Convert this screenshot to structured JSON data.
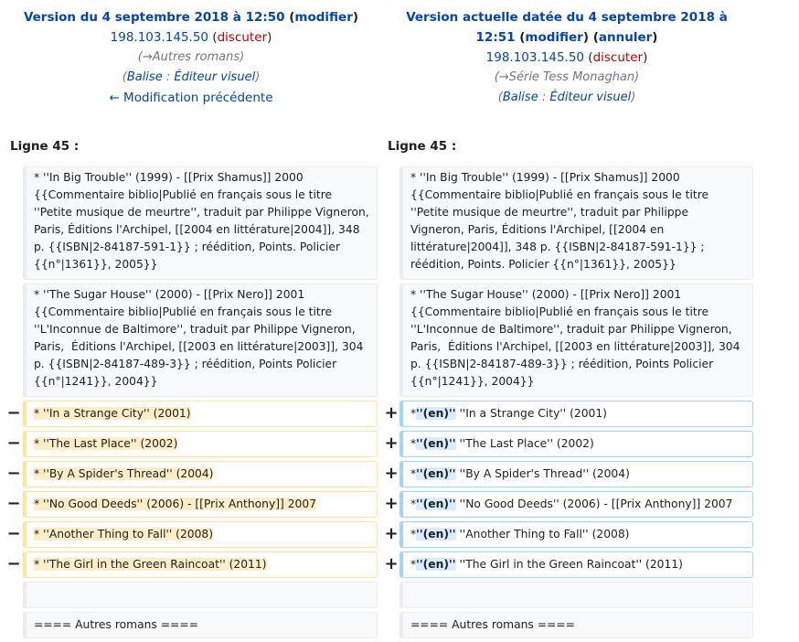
{
  "left_header": {
    "title_prefix": "Version du 4 septembre 2018 à 12:50",
    "edit_open": " (",
    "edit_link": "modifier",
    "edit_close": ")",
    "user": "198.103.145.50",
    "talk_open": " (",
    "talk_link": "discuter",
    "talk_close": ")",
    "summary_open": "(",
    "summary_link": "→Autres romans",
    "summary_close": ")",
    "tag_open": "(",
    "tag_label": "Balise",
    "tag_sep": " : ",
    "tag_link": "Éditeur visuel",
    "tag_close": ")",
    "prev_link": "← Modification précédente"
  },
  "right_header": {
    "title_line1": "Version actuelle datée du 4 septembre 2018 à",
    "title_line2": "12:51",
    "edit_open": " (",
    "edit_link": "modifier",
    "mid": ") (",
    "undo_link": "annuler",
    "edit_close": ")",
    "user": "198.103.145.50",
    "talk_open": " (",
    "talk_link": "discuter",
    "talk_close": ")",
    "summary_open": "(",
    "summary_link": "→Série Tess Monaghan",
    "summary_close": ")",
    "tag_open": "(",
    "tag_label": "Balise",
    "tag_sep": " : ",
    "tag_link": "Éditeur visuel",
    "tag_close": ")"
  },
  "line_left": "Ligne 45 :",
  "line_right": "Ligne 45 :",
  "context": {
    "c1": "* ''In Big Trouble'' (1999) - [[Prix Shamus]] 2000 {{Commentaire biblio|Publié en français sous le titre ''Petite musique de meurtre'', traduit par Philippe Vigneron, Paris, Éditions l'Archipel, [[2004 en littérature|2004]], 348 p. {{ISBN|2-84187-591-1}} ; réédition, Points. Policier {{n°|1361}}, 2005}}",
    "c2": "* ''The Sugar House'' (2000) - [[Prix Nero]] 2001 {{Commentaire biblio|Publié en français sous le titre ''L'Inconnue de Baltimore'', traduit par Philippe Vigneron, Paris,  Éditions l'Archipel, [[2003 en littérature|2003]], 304 p. {{ISBN|2-84187-489-3}} ; réédition, Points Policier {{n°|1241}}, 2004}}",
    "c3": "",
    "c4": "==== Autres romans ===="
  },
  "markers": {
    "minus": "−",
    "plus": "+"
  },
  "removed": [
    "* ''In a Strange City'' (2001)",
    "* ''The Last Place'' (2002)",
    "* ''By A Spider's Thread'' (2004)",
    "* ''No Good Deeds'' (2006) - [[Prix Anthony]] 2007",
    "* ''Another Thing to Fall'' (2008)",
    "* ''The Girl in the Green Raincoat'' (2011)"
  ],
  "added_prefix": "*",
  "added_marker": "''(en)''",
  "added": [
    " ''In a Strange City'' (2001)",
    " ''The Last Place'' (2002)",
    " ''By A Spider's Thread'' (2004)",
    " ''No Good Deeds'' (2006) - [[Prix Anthony]] 2007",
    " ''Another Thing to Fall'' (2008)",
    " ''The Girl in the Green Raincoat'' (2011)"
  ],
  "colors": {
    "link": "#0645ad",
    "talk": "#ba0000",
    "removed_border": "#ffe49c",
    "added_border": "#a3d3ff",
    "context_bg": "#f8f9fa"
  }
}
